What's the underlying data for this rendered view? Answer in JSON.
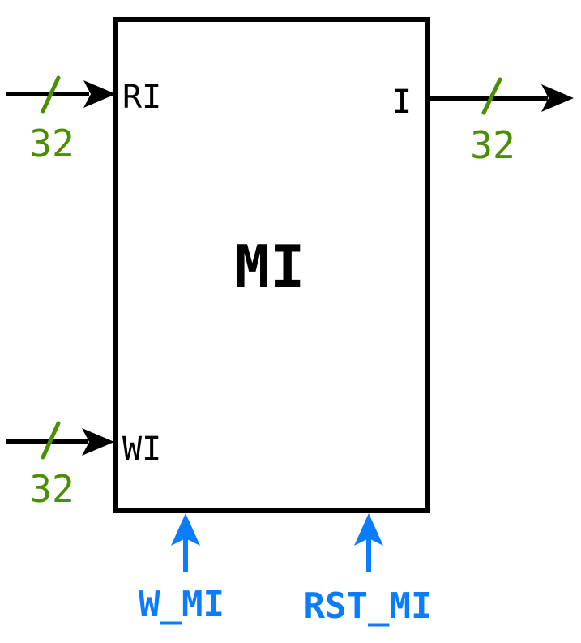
{
  "block": {
    "title": "MI"
  },
  "ports": {
    "input_read": {
      "label": "RI",
      "bus_width": "32"
    },
    "input_write": {
      "label": "WI",
      "bus_width": "32"
    },
    "output": {
      "label": "I",
      "bus_width": "32"
    }
  },
  "controls": {
    "write": {
      "label": "W_MI"
    },
    "reset": {
      "label": "RST_MI"
    }
  },
  "colors": {
    "block_stroke": "#000000",
    "data_arrow": "#000000",
    "bus_width": "#4a8f00",
    "control": "#0a7cff"
  }
}
